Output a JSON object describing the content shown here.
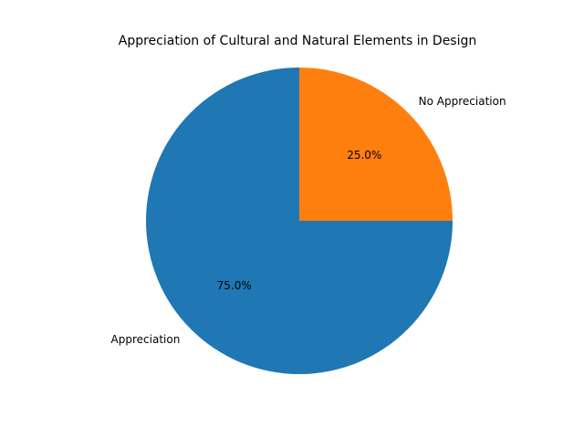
{
  "chart_data": {
    "type": "pie",
    "title": "Appreciation of Cultural and Natural Elements in Design",
    "categories": [
      "Appreciation",
      "No Appreciation"
    ],
    "values": [
      75,
      25
    ],
    "value_labels": [
      "75.0%",
      "25.0%"
    ],
    "colors": [
      "#1f77b4",
      "#ff7f0e"
    ]
  }
}
